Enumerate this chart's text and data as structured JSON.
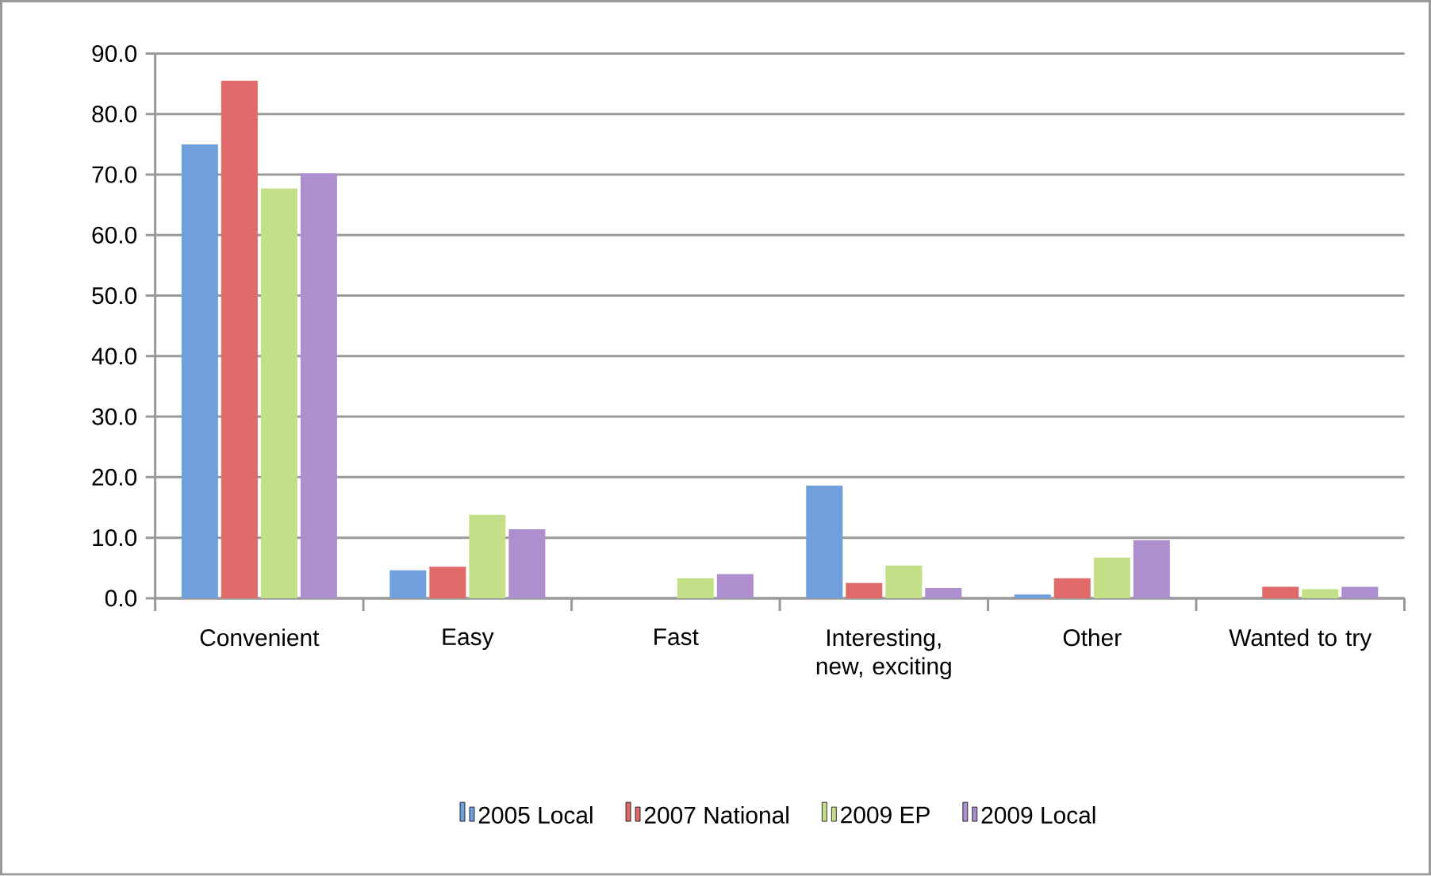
{
  "chart_data": {
    "type": "bar",
    "categories": [
      "Convenient",
      "Easy",
      "Fast",
      "Interesting, new, exciting",
      "Other",
      "Wanted to try"
    ],
    "series": [
      {
        "name": "2005 Local",
        "color": "#6f9fdc",
        "values": [
          75.0,
          4.6,
          0,
          18.6,
          0.6,
          0
        ]
      },
      {
        "name": "2007 National",
        "color": "#e06a6a",
        "values": [
          85.5,
          5.2,
          0,
          2.5,
          3.3,
          1.9
        ]
      },
      {
        "name": "2009 EP",
        "color": "#c3e088",
        "values": [
          67.7,
          13.8,
          3.3,
          5.4,
          6.7,
          1.5
        ]
      },
      {
        "name": "2009 Local",
        "color": "#ad8fcf",
        "values": [
          70.2,
          11.4,
          4.0,
          1.7,
          9.6,
          1.9
        ]
      }
    ],
    "ylim": [
      0,
      90
    ],
    "yticks": [
      {
        "value": 0,
        "label": "0.0"
      },
      {
        "value": 10,
        "label": "10.0"
      },
      {
        "value": 20,
        "label": "20.0"
      },
      {
        "value": 30,
        "label": "30.0"
      },
      {
        "value": 40,
        "label": "40.0"
      },
      {
        "value": 50,
        "label": "50.0"
      },
      {
        "value": 60,
        "label": "60.0"
      },
      {
        "value": 70,
        "label": "70.0"
      },
      {
        "value": 80,
        "label": "80.0"
      },
      {
        "value": 90,
        "label": "90.0"
      }
    ],
    "grid": "y",
    "legend": "bottom"
  }
}
